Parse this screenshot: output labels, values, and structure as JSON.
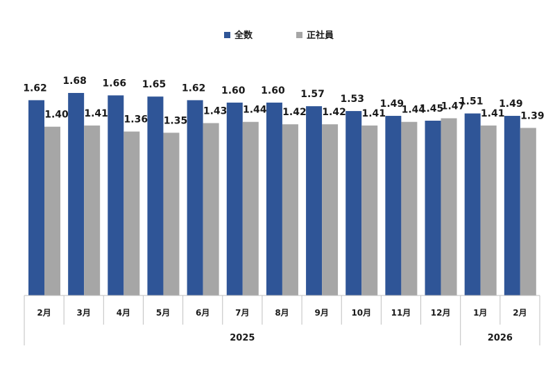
{
  "chart_data": {
    "type": "bar",
    "categories": [
      "2月",
      "3月",
      "4月",
      "5月",
      "6月",
      "7月",
      "8月",
      "9月",
      "10月",
      "11月",
      "12月",
      "1月",
      "2月"
    ],
    "year_groups": [
      {
        "label": "2025",
        "count": 11
      },
      {
        "label": "2026",
        "count": 2
      }
    ],
    "series": [
      {
        "name": "全数",
        "color": "#2f5597",
        "values": [
          1.62,
          1.68,
          1.66,
          1.65,
          1.62,
          1.6,
          1.6,
          1.57,
          1.53,
          1.49,
          1.45,
          1.51,
          1.49
        ],
        "labels": [
          "1.62",
          "1.68",
          "1.66",
          "1.65",
          "1.62",
          "1.60",
          "1.60",
          "1.57",
          "1.53",
          "1.49",
          "1.45",
          "1.51",
          "1.49"
        ]
      },
      {
        "name": "正社員",
        "color": "#a6a6a6",
        "values": [
          1.4,
          1.41,
          1.36,
          1.35,
          1.43,
          1.44,
          1.42,
          1.42,
          1.41,
          1.44,
          1.47,
          1.41,
          1.39
        ],
        "labels": [
          "1.40",
          "1.41",
          "1.36",
          "1.35",
          "1.43",
          "1.44",
          "1.42",
          "1.42",
          "1.41",
          "1.44",
          "1.47",
          "1.41",
          "1.39"
        ]
      }
    ],
    "ylim": [
      0,
      1.8
    ],
    "grid": false,
    "legend_position": "top-center"
  }
}
